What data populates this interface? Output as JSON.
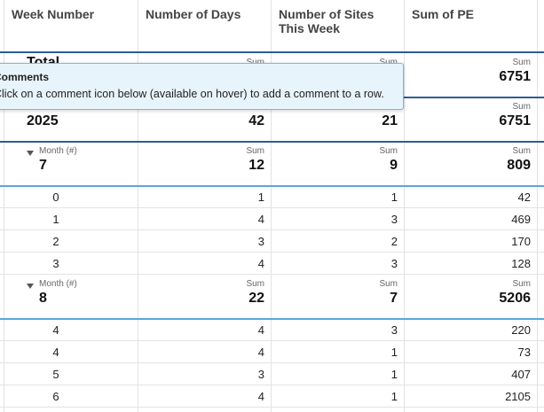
{
  "header": {
    "columns": [
      "Week Number",
      "Number of Days",
      "Number of Sites This Week",
      "Sum of PE"
    ]
  },
  "tooltip": {
    "title": "Comments",
    "text": "Click on a comment icon below (available on hover) to add a comment to a row."
  },
  "rows": [
    {
      "kind": "total",
      "label": "Total",
      "cells": [
        {
          "caption": "Sum"
        },
        {
          "caption": "Sum"
        },
        {
          "caption": "Sum",
          "value": 6751
        }
      ]
    },
    {
      "kind": "year",
      "label": "2025",
      "cells": [
        {
          "value": 42
        },
        {
          "value": 21
        },
        {
          "caption": "Sum",
          "value": 6751
        }
      ]
    },
    {
      "kind": "month",
      "caption": "Month (#)",
      "label": "7",
      "cells": [
        {
          "caption": "Sum",
          "value": 12
        },
        {
          "caption": "Sum",
          "value": 9
        },
        {
          "caption": "Sum",
          "value": 809
        }
      ]
    },
    {
      "kind": "detail",
      "label": "0",
      "cells": [
        {
          "value": 1
        },
        {
          "value": 1
        },
        {
          "value": 42
        }
      ]
    },
    {
      "kind": "detail",
      "label": "1",
      "cells": [
        {
          "value": 4
        },
        {
          "value": 3
        },
        {
          "value": 469
        }
      ]
    },
    {
      "kind": "detail",
      "label": "2",
      "cells": [
        {
          "value": 3
        },
        {
          "value": 2
        },
        {
          "value": 170
        }
      ]
    },
    {
      "kind": "detail",
      "label": "3",
      "cells": [
        {
          "value": 4
        },
        {
          "value": 3
        },
        {
          "value": 128
        }
      ]
    },
    {
      "kind": "month",
      "caption": "Month (#)",
      "label": "8",
      "cells": [
        {
          "caption": "Sum",
          "value": 22
        },
        {
          "caption": "Sum",
          "value": 7
        },
        {
          "caption": "Sum",
          "value": 5206
        }
      ]
    },
    {
      "kind": "detail",
      "label": "4",
      "cells": [
        {
          "value": 4
        },
        {
          "value": 3
        },
        {
          "value": 220
        }
      ]
    },
    {
      "kind": "detail",
      "label": "4",
      "cells": [
        {
          "value": 4
        },
        {
          "value": 1
        },
        {
          "value": 73
        }
      ]
    },
    {
      "kind": "detail",
      "label": "5",
      "cells": [
        {
          "value": 3
        },
        {
          "value": 1
        },
        {
          "value": 407
        }
      ]
    },
    {
      "kind": "detail",
      "label": "6",
      "cells": [
        {
          "value": 4
        },
        {
          "value": 1
        },
        {
          "value": 2105
        }
      ]
    }
  ]
}
